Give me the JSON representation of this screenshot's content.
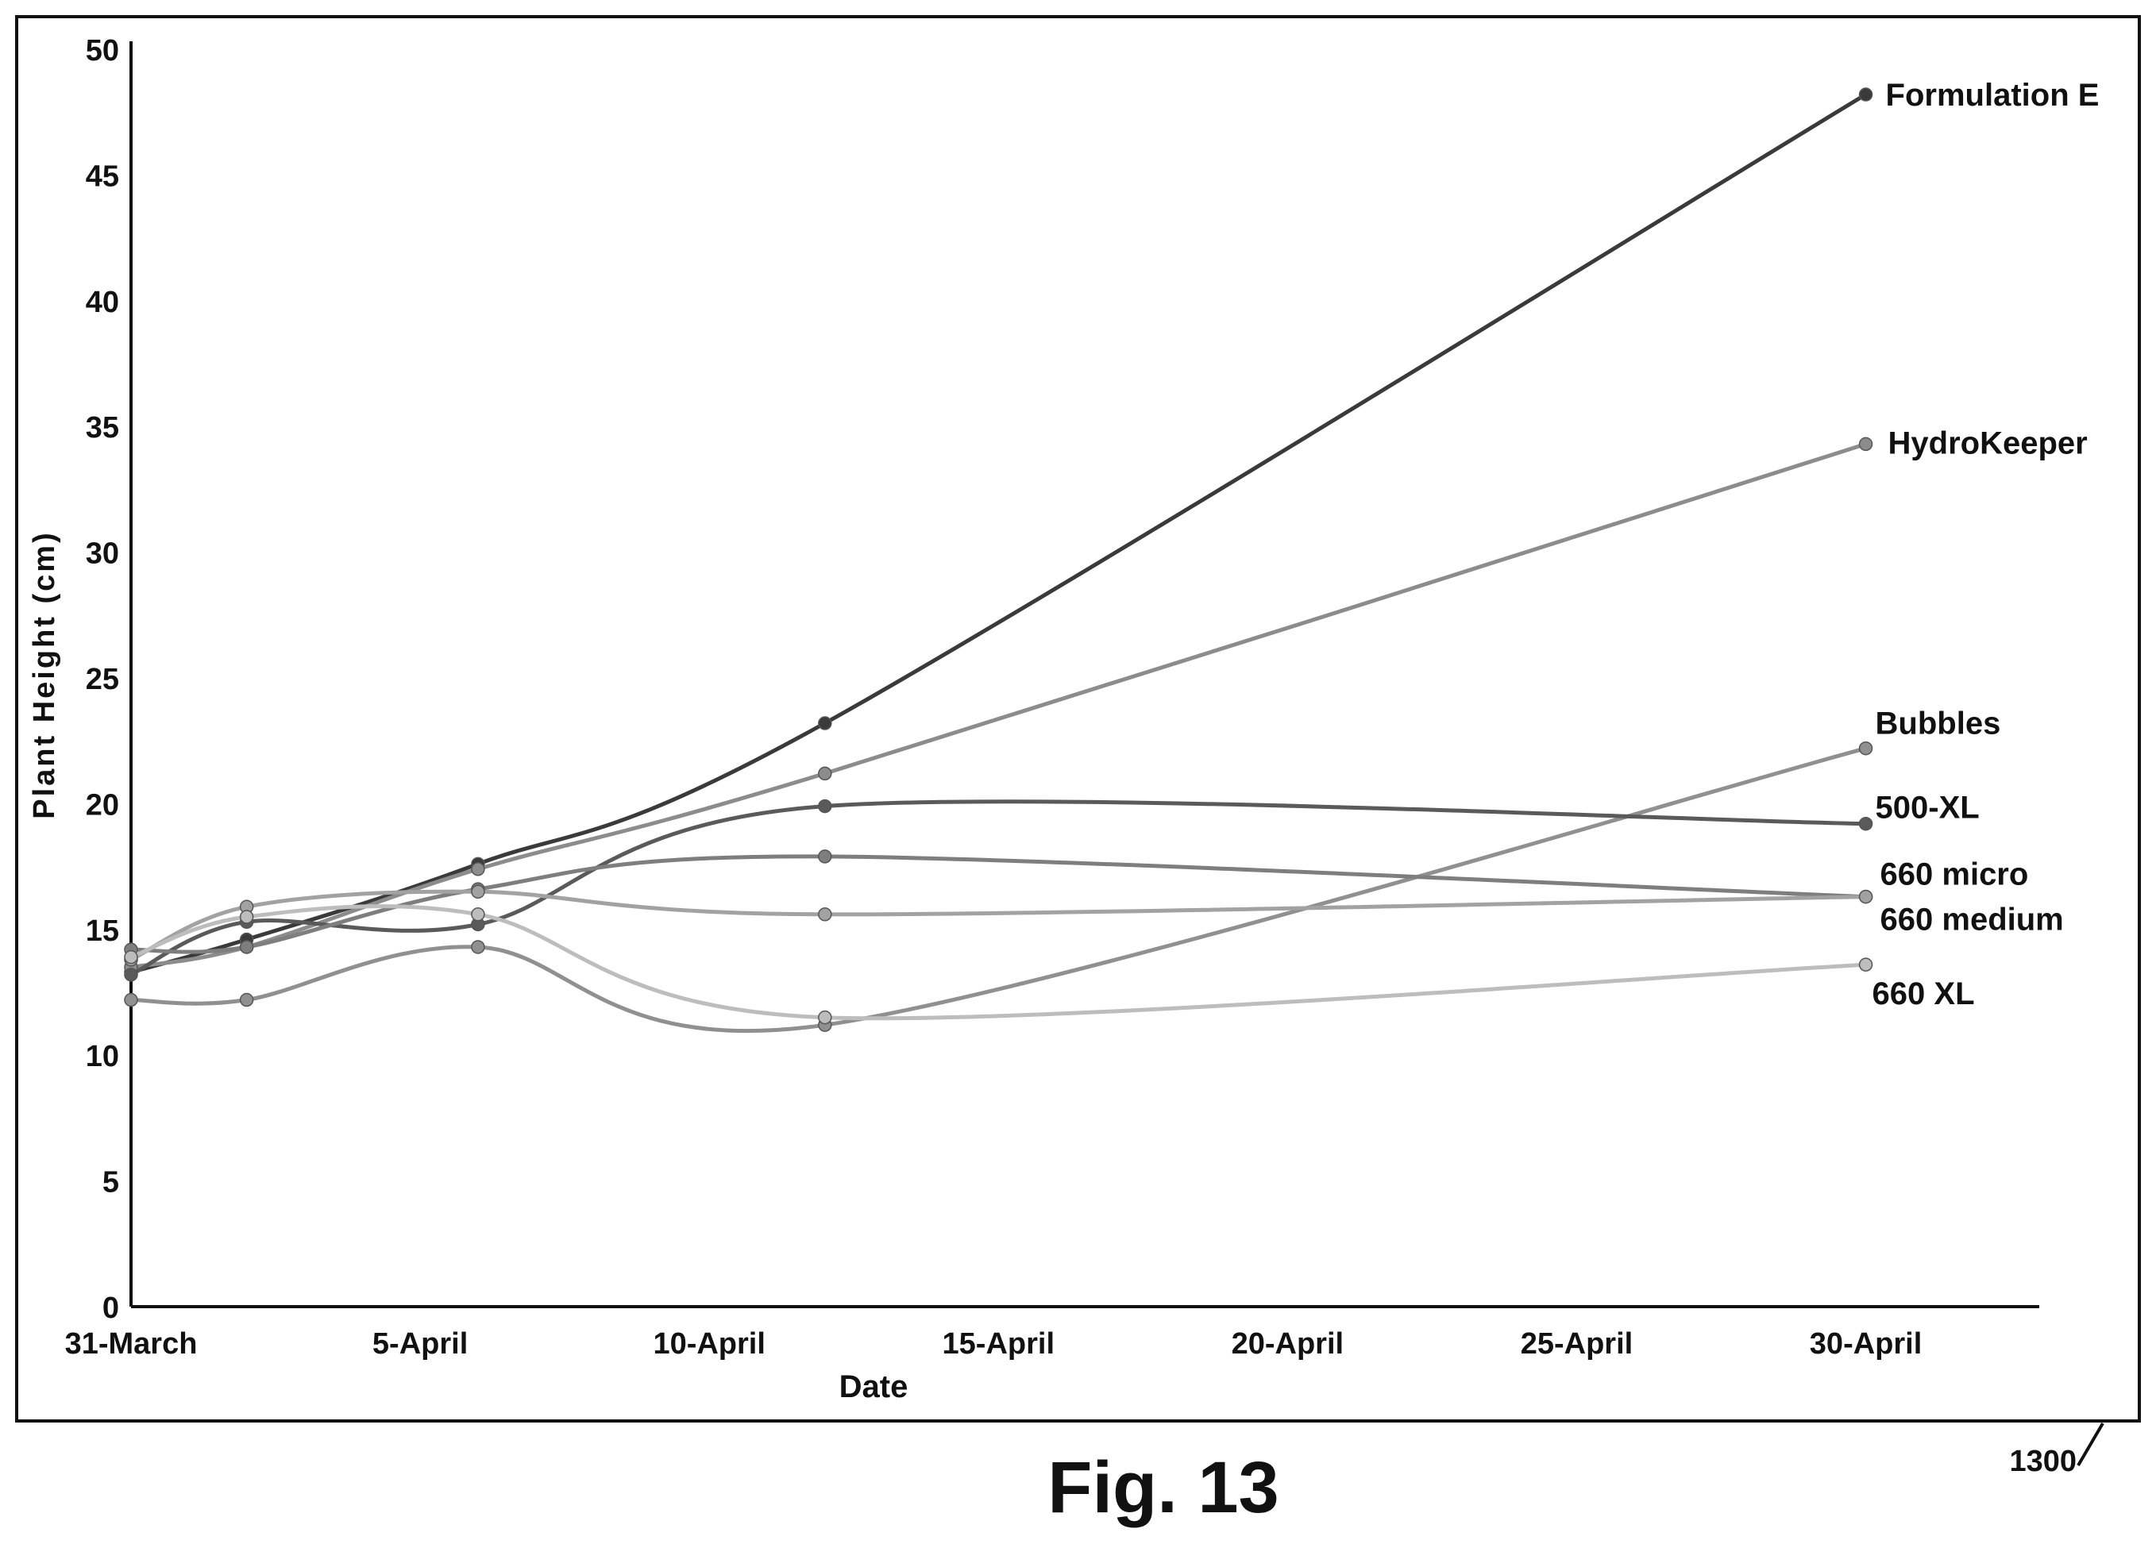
{
  "figure": {
    "caption": "Fig. 13",
    "reference_number": "1300"
  },
  "chart_data": {
    "type": "line",
    "title": "",
    "xlabel": "Date",
    "ylabel": "Plant Height (cm)",
    "ylim": [
      0,
      50
    ],
    "xlim": [
      "2024-03-31",
      "2024-05-03"
    ],
    "y_ticks": [
      0,
      5,
      10,
      15,
      20,
      25,
      30,
      35,
      40,
      45,
      50
    ],
    "x_ticks": [
      {
        "date": "2024-03-31",
        "label": "31-March"
      },
      {
        "date": "2024-04-05",
        "label": "5-April"
      },
      {
        "date": "2024-04-10",
        "label": "10-April"
      },
      {
        "date": "2024-04-15",
        "label": "15-April"
      },
      {
        "date": "2024-04-20",
        "label": "20-April"
      },
      {
        "date": "2024-04-25",
        "label": "25-April"
      },
      {
        "date": "2024-04-30",
        "label": "30-April"
      }
    ],
    "grid": false,
    "legend": "end-of-line labels",
    "x": [
      "2024-03-31",
      "2024-04-02",
      "2024-04-06",
      "2024-04-12",
      "2024-04-30"
    ],
    "series": [
      {
        "name": "Formulation E",
        "color": "#3a3a3a",
        "values": [
          13.3,
          14.6,
          17.6,
          23.2,
          48.2
        ]
      },
      {
        "name": "HydroKeeper",
        "color": "#8c8c8c",
        "values": [
          13.5,
          14.3,
          17.4,
          21.2,
          34.3
        ]
      },
      {
        "name": "Bubbles",
        "color": "#909090",
        "values": [
          12.2,
          12.2,
          14.3,
          11.2,
          22.2
        ]
      },
      {
        "name": "500-XL",
        "color": "#5a5a5a",
        "values": [
          13.2,
          15.3,
          15.2,
          19.9,
          19.2
        ]
      },
      {
        "name": "660 micro",
        "color": "#7e7e7e",
        "values": [
          14.2,
          14.3,
          16.6,
          17.9,
          16.3
        ]
      },
      {
        "name": "660 medium",
        "color": "#a2a2a2",
        "values": [
          13.8,
          15.9,
          16.5,
          15.6,
          16.3
        ]
      },
      {
        "name": "660 XL",
        "color": "#bdbdbd",
        "values": [
          13.9,
          15.5,
          15.6,
          11.5,
          13.6
        ]
      }
    ]
  }
}
